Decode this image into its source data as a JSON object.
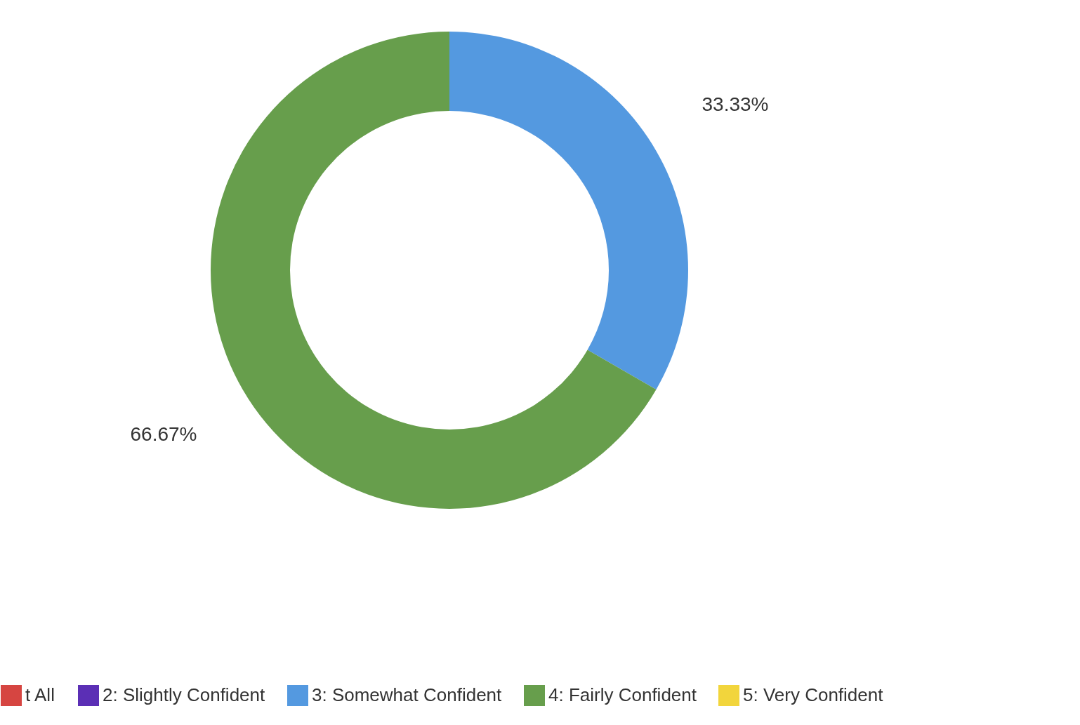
{
  "chart_data": {
    "type": "donut",
    "categories": [
      "t All",
      "2: Slightly Confident",
      "3: Somewhat Confident",
      "4: Fairly Confident",
      "5: Very Confident"
    ],
    "values": [
      0,
      0,
      33.33,
      66.67,
      0
    ],
    "colors": [
      "#d64541",
      "#5b2fb5",
      "#5499e0",
      "#679e4c",
      "#f2d53c"
    ],
    "value_labels": [
      null,
      null,
      "33.33%",
      "66.67%",
      null
    ],
    "legend": "bottom"
  }
}
